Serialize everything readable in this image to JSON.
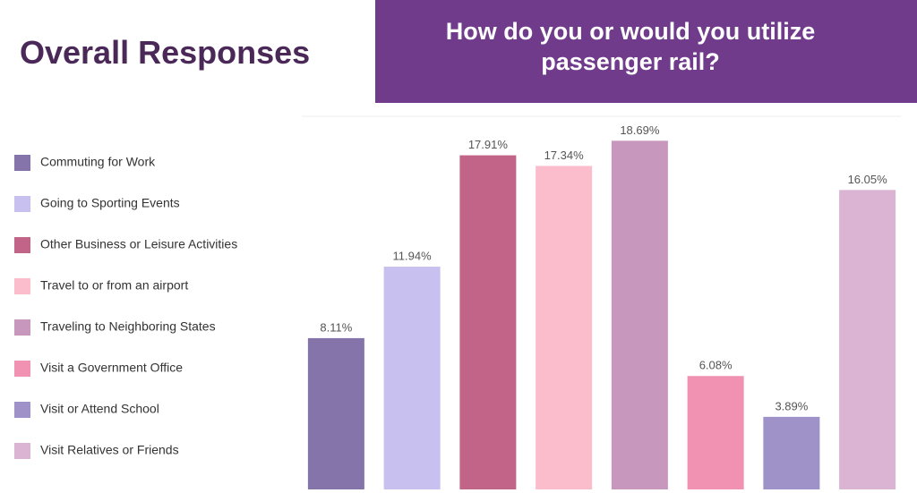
{
  "chart_data": {
    "type": "bar",
    "title": "Overall Responses",
    "subtitle": "How do you or would you utilize passenger rail?",
    "categories": [
      "Commuting for Work",
      "Going to Sporting Events",
      "Other Business or Leisure Activities",
      "Travel to or from an airport",
      "Traveling to Neighboring States",
      "Visit a Government Office",
      "Visit or Attend School",
      "Visit Relatives or Friends"
    ],
    "values": [
      8.11,
      11.94,
      17.91,
      17.34,
      18.69,
      6.08,
      3.89,
      16.05
    ],
    "value_labels": [
      "8.11%",
      "11.94%",
      "17.91%",
      "17.34%",
      "18.69%",
      "6.08%",
      "3.89%",
      "16.05%"
    ],
    "colors": [
      "#8474a9",
      "#c8c0ee",
      "#c26487",
      "#fbbccb",
      "#c897bd",
      "#f192b2",
      "#9e92c8",
      "#dbb3d3"
    ],
    "ylim": [
      0,
      20
    ],
    "legend": "left"
  }
}
